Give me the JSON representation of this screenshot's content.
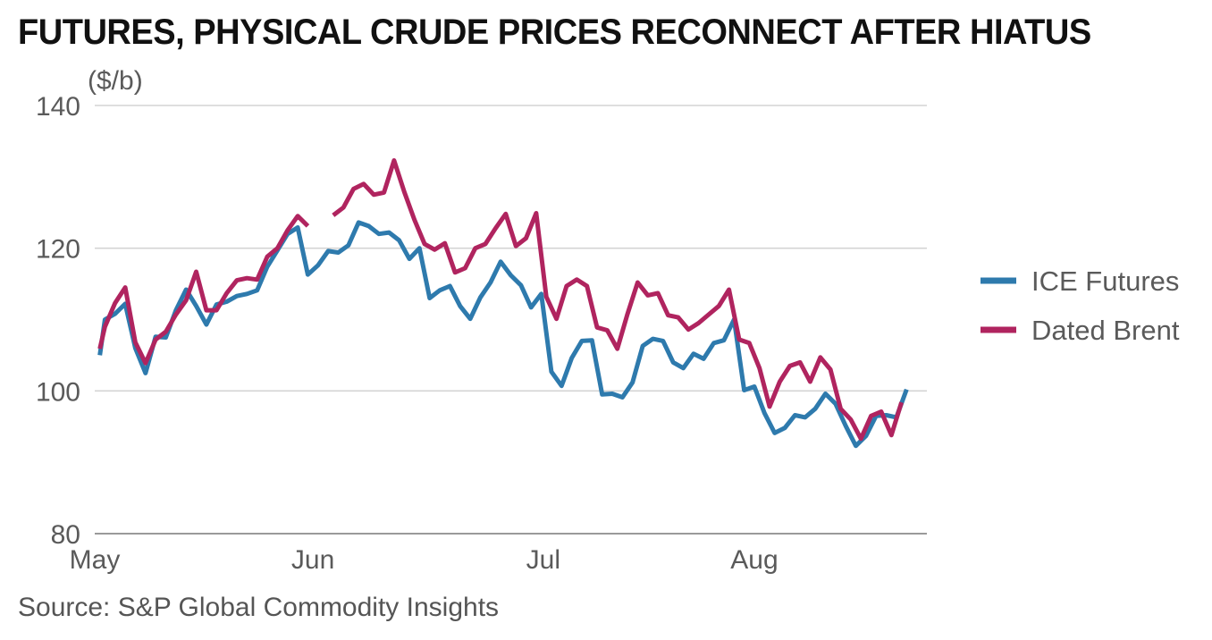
{
  "chart_data": {
    "type": "line",
    "title": "FUTURES, PHYSICAL CRUDE PRICES RECONNECT AFTER HIATUS",
    "ylabel": "($/b)",
    "xlabel": "",
    "ylim": [
      80,
      140
    ],
    "yticks": [
      80,
      100,
      120,
      140
    ],
    "xlim": [
      0,
      82
    ],
    "xticks": [
      {
        "label": "May",
        "x": 0
      },
      {
        "label": "Jun",
        "x": 21.5
      },
      {
        "label": "Jul",
        "x": 44.2
      },
      {
        "label": "Aug",
        "x": 65
      }
    ],
    "grid": true,
    "legend_position": "right",
    "series": [
      {
        "name": "ICE Futures",
        "color": "#2e7aad",
        "values": [
          [
            0.5,
            105
          ],
          [
            1,
            110
          ],
          [
            2,
            110.8
          ],
          [
            3,
            112.2
          ],
          [
            4,
            106
          ],
          [
            5,
            102.5
          ],
          [
            6,
            107.6
          ],
          [
            7,
            107.5
          ],
          [
            8,
            111.3
          ],
          [
            9,
            114.2
          ],
          [
            10,
            111.9
          ],
          [
            11,
            109.3
          ],
          [
            12,
            112.1
          ],
          [
            13,
            112.5
          ],
          [
            14,
            113.3
          ],
          [
            15,
            113.6
          ],
          [
            16,
            114.1
          ],
          [
            17,
            117.4
          ],
          [
            18,
            119.7
          ],
          [
            19,
            122
          ],
          [
            20,
            122.9
          ],
          [
            21,
            116.3
          ],
          [
            22,
            117.6
          ],
          [
            23,
            119.6
          ],
          [
            24,
            119.4
          ],
          [
            25,
            120.4
          ],
          [
            26,
            123.6
          ],
          [
            27,
            123.1
          ],
          [
            28,
            122
          ],
          [
            29,
            122.2
          ],
          [
            30,
            121.1
          ],
          [
            31,
            118.5
          ],
          [
            32,
            120
          ],
          [
            33,
            113
          ],
          [
            34,
            114.1
          ],
          [
            35,
            114.7
          ],
          [
            36,
            111.9
          ],
          [
            37,
            110.1
          ],
          [
            38,
            113.1
          ],
          [
            39,
            115.2
          ],
          [
            40,
            118.1
          ],
          [
            41,
            116.2
          ],
          [
            42,
            114.8
          ],
          [
            43,
            111.7
          ],
          [
            44,
            113.6
          ],
          [
            45,
            102.7
          ],
          [
            46,
            100.7
          ],
          [
            47,
            104.6
          ],
          [
            48,
            107
          ],
          [
            49,
            107.1
          ],
          [
            50,
            99.5
          ],
          [
            51,
            99.6
          ],
          [
            52,
            99.1
          ],
          [
            53,
            101.2
          ],
          [
            54,
            106.3
          ],
          [
            55,
            107.3
          ],
          [
            56,
            107
          ],
          [
            57,
            104
          ],
          [
            58,
            103.2
          ],
          [
            59,
            105.2
          ],
          [
            60,
            104.5
          ],
          [
            61,
            106.7
          ],
          [
            62,
            107.1
          ],
          [
            63,
            110
          ],
          [
            64,
            100.1
          ],
          [
            65,
            100.6
          ],
          [
            66,
            96.9
          ],
          [
            67,
            94.1
          ],
          [
            68,
            94.8
          ],
          [
            69,
            96.6
          ],
          [
            70,
            96.3
          ],
          [
            71,
            97.5
          ],
          [
            72,
            99.6
          ],
          [
            73,
            98.2
          ],
          [
            74,
            95.1
          ],
          [
            75,
            92.3
          ],
          [
            76,
            93.7
          ],
          [
            77,
            96.5
          ],
          [
            78,
            96.6
          ],
          [
            79,
            96.3
          ],
          [
            80,
            100.2
          ]
        ]
      },
      {
        "name": "Dated Brent",
        "color": "#b0245f",
        "values": [
          [
            0.5,
            105.9
          ],
          [
            1,
            109
          ],
          [
            2,
            112.3
          ],
          [
            3,
            114.5
          ],
          [
            4,
            106.8
          ],
          [
            5,
            103.9
          ],
          [
            6,
            107.2
          ],
          [
            7,
            108.3
          ],
          [
            8,
            110.7
          ],
          [
            9,
            112.7
          ],
          [
            10,
            116.7
          ],
          [
            11,
            111.3
          ],
          [
            12,
            111.3
          ],
          [
            13,
            113.7
          ],
          [
            14,
            115.5
          ],
          [
            15,
            115.8
          ],
          [
            16,
            115.6
          ],
          [
            17,
            118.8
          ],
          [
            18,
            120
          ],
          [
            19,
            122.5
          ],
          [
            20,
            124.5
          ],
          [
            21,
            123.1
          ],
          null,
          [
            23.5,
            124.6
          ],
          [
            24.5,
            125.7
          ],
          [
            25.5,
            128.3
          ],
          [
            26.5,
            129
          ],
          [
            27.5,
            127.5
          ],
          [
            28.5,
            127.8
          ],
          [
            29.5,
            132.3
          ],
          [
            30.5,
            127.9
          ],
          [
            31.5,
            124
          ],
          [
            32.5,
            120.6
          ],
          [
            33.5,
            119.8
          ],
          [
            34.5,
            120.7
          ],
          [
            35.5,
            116.6
          ],
          [
            36.5,
            117.2
          ],
          [
            37.5,
            120
          ],
          [
            38.5,
            120.6
          ],
          [
            39.5,
            122.8
          ],
          [
            40.5,
            124.8
          ],
          [
            41.5,
            120.3
          ],
          [
            42.5,
            121.4
          ],
          [
            43.5,
            124.9
          ],
          [
            44.5,
            113.2
          ],
          [
            45.5,
            110.1
          ],
          [
            46.5,
            114.7
          ],
          [
            47.5,
            115.6
          ],
          [
            48.5,
            114.7
          ],
          [
            49.5,
            108.9
          ],
          [
            50.5,
            108.5
          ],
          [
            51.5,
            105.9
          ],
          [
            52.5,
            110.8
          ],
          [
            53.5,
            115.2
          ],
          [
            54.5,
            113.4
          ],
          [
            55.5,
            113.7
          ],
          [
            56.5,
            110.6
          ],
          [
            57.5,
            110.3
          ],
          [
            58.5,
            108.6
          ],
          [
            59.5,
            109.5
          ],
          [
            60.5,
            110.7
          ],
          [
            61.5,
            111.9
          ],
          [
            62.5,
            114.2
          ],
          [
            63.5,
            107.2
          ],
          [
            64.5,
            106.7
          ],
          [
            65.5,
            103.2
          ],
          [
            66.5,
            97.8
          ],
          [
            67.5,
            101.3
          ],
          [
            68.5,
            103.5
          ],
          [
            69.5,
            104
          ],
          [
            70.5,
            101.3
          ],
          [
            71.5,
            104.7
          ],
          [
            72.5,
            103
          ],
          [
            73.5,
            97.5
          ],
          [
            74.5,
            96
          ],
          [
            75.5,
            93.3
          ],
          [
            76.5,
            96.5
          ],
          [
            77.5,
            97.1
          ],
          [
            78.5,
            93.8
          ],
          [
            79.5,
            98.4
          ]
        ]
      }
    ],
    "source": "Source: S&P Global Commodity Insights"
  }
}
